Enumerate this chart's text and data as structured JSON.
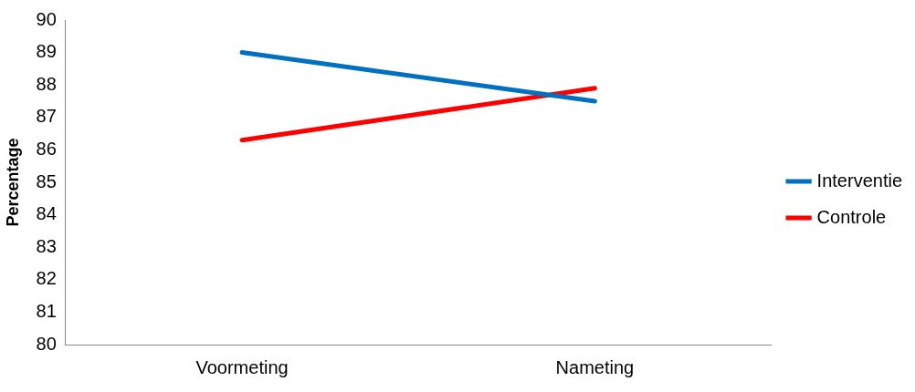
{
  "chart_data": {
    "type": "line",
    "ylabel": "Percentage",
    "categories": [
      "Voormeting",
      "Nameting"
    ],
    "series": [
      {
        "name": "Interventie",
        "color": "#0070c0",
        "values": [
          89.0,
          87.5
        ]
      },
      {
        "name": "Controle",
        "color": "#ff0000",
        "values": [
          86.3,
          87.9
        ]
      }
    ],
    "ylim": [
      80,
      90
    ],
    "yticks": [
      80,
      81,
      82,
      83,
      84,
      85,
      86,
      87,
      88,
      89,
      90
    ],
    "grid": false,
    "legend": "right",
    "marker": "none",
    "line_style": "solid"
  }
}
